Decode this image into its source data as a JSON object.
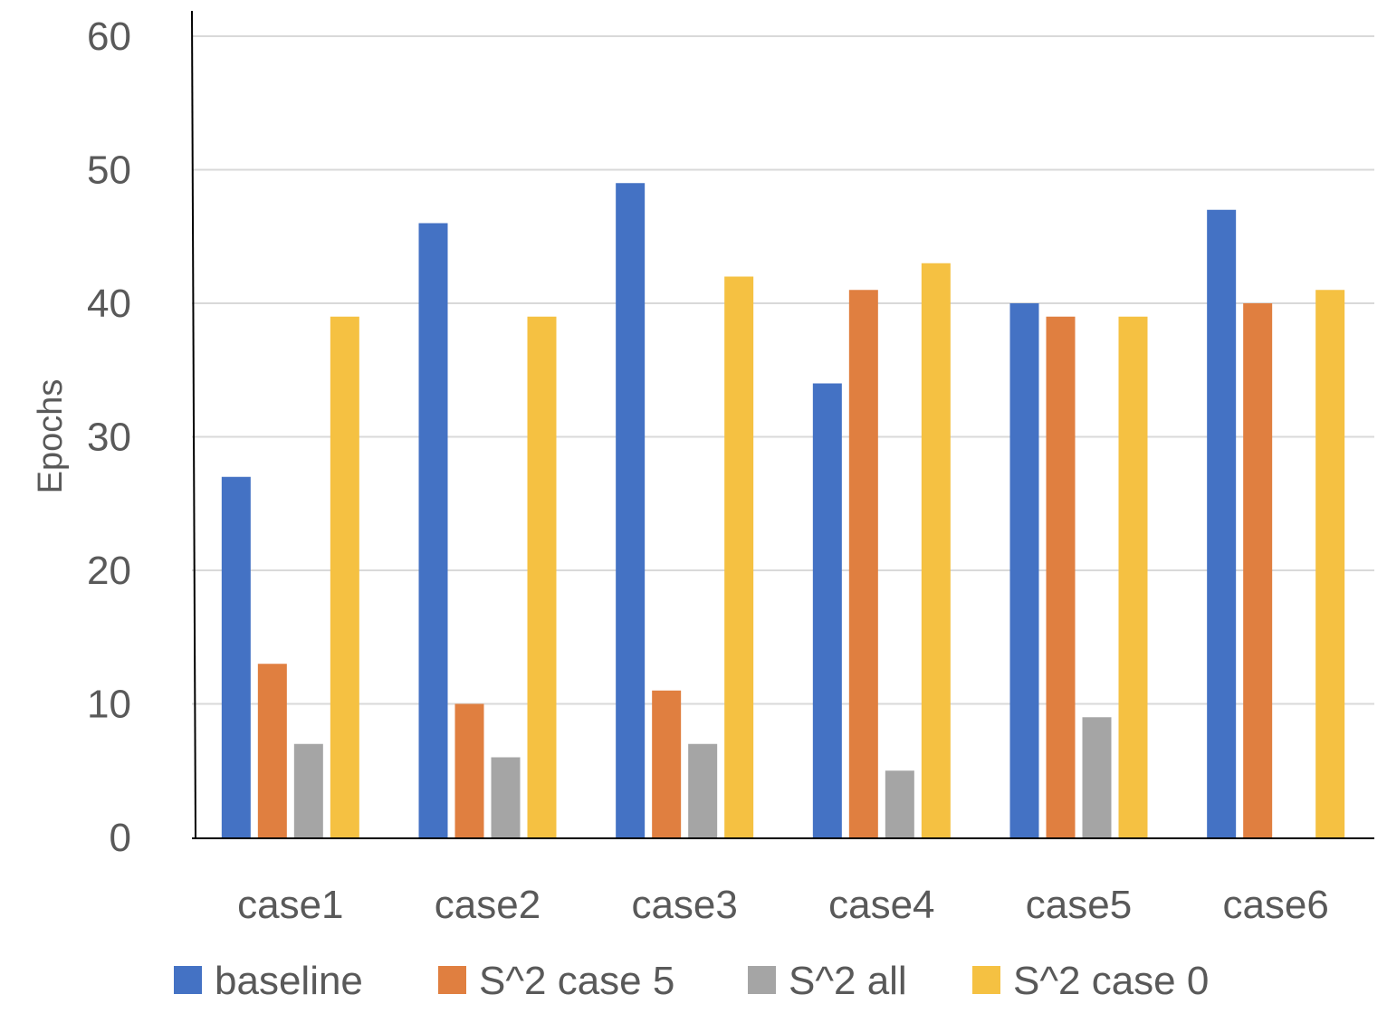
{
  "chart_data": {
    "type": "bar",
    "title": "",
    "xlabel": "",
    "ylabel": "Epochs",
    "ylim": [
      0,
      60
    ],
    "yticks": [
      0,
      10,
      20,
      30,
      40,
      50,
      60
    ],
    "grid": true,
    "legend_position": "bottom",
    "categories": [
      "case1",
      "case2",
      "case3",
      "case4",
      "case5",
      "case6"
    ],
    "series": [
      {
        "name": "baseline",
        "color": "#4472C4",
        "values": [
          27,
          46,
          49,
          34,
          40,
          47
        ]
      },
      {
        "name": "S^2 case 5",
        "color": "#E07F40",
        "values": [
          13,
          10,
          11,
          41,
          39,
          40
        ]
      },
      {
        "name": "S^2 all",
        "color": "#A5A5A5",
        "values": [
          7,
          6,
          7,
          5,
          9,
          0
        ]
      },
      {
        "name": "S^2 case 0",
        "color": "#F5C142",
        "values": [
          39,
          39,
          42,
          43,
          39,
          41
        ]
      }
    ]
  }
}
